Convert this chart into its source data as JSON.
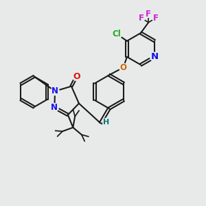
{
  "bg_color": "#e8eaea",
  "bond_color": "#1a1a1a",
  "bond_width": 1.5,
  "atom_colors": {
    "N": "#1010ee",
    "O": "#dd1111",
    "O2": "#cc6600",
    "Cl": "#22aa22",
    "F": "#cc22cc",
    "H": "#007777",
    "C": "#1a1a1a"
  },
  "font_size": 8.5,
  "font_size_s": 7.0
}
